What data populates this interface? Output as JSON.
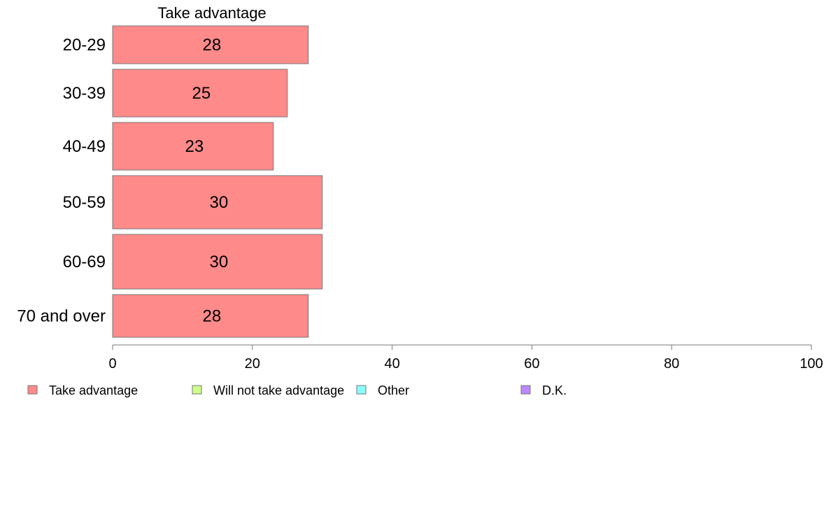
{
  "chart_data": {
    "type": "bar",
    "orientation": "horizontal",
    "panel_title": "Take advantage",
    "categories": [
      "20-29",
      "30-39",
      "40-49",
      "50-59",
      "60-69",
      "70 and over"
    ],
    "series": [
      {
        "name": "Take advantage",
        "values": [
          28,
          25,
          23,
          30,
          30,
          28
        ],
        "color": "#ff8a8a"
      }
    ],
    "value_labels": [
      "28",
      "25",
      "23",
      "30",
      "30",
      "28"
    ],
    "xlim": [
      0,
      100
    ],
    "x_ticks": [
      "0",
      "20",
      "40",
      "60",
      "80",
      "100"
    ],
    "grid": false,
    "legend_position": "bottom",
    "legend": [
      {
        "label": "Take advantage",
        "color": "#ff8a8a"
      },
      {
        "label": "Will not take advantage",
        "color": "#ccff88"
      },
      {
        "label": "Other",
        "color": "#88ffff"
      },
      {
        "label": "D.K.",
        "color": "#bb88ff"
      }
    ]
  }
}
